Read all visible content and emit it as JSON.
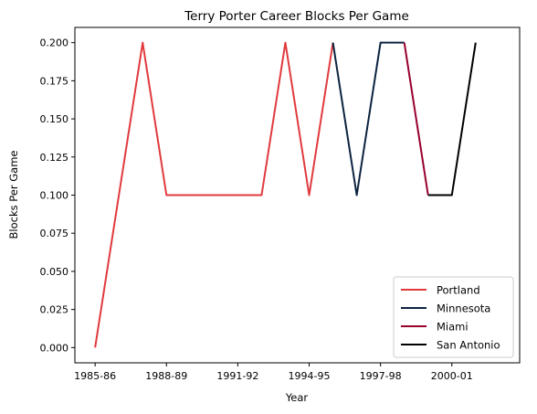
{
  "chart_data": {
    "type": "line",
    "title": "Terry Porter Career Blocks Per Game",
    "xlabel": "Year",
    "ylabel": "Blocks Per Game",
    "x_tick_labels": [
      "1985-86",
      "1988-89",
      "1991-92",
      "1994-95",
      "1997-98",
      "2000-01"
    ],
    "y_tick_labels": [
      "0.000",
      "0.025",
      "0.050",
      "0.075",
      "0.100",
      "0.125",
      "0.150",
      "0.175",
      "0.200"
    ],
    "xlim": [
      -0.85,
      17.85
    ],
    "ylim": [
      -0.01,
      0.21
    ],
    "y_ticks": [
      0,
      0.025,
      0.05,
      0.075,
      0.1,
      0.125,
      0.15,
      0.175,
      0.2
    ],
    "x_ticks": [
      0,
      3,
      6,
      9,
      12,
      15
    ],
    "grid": false,
    "legend_position": "bottom-right",
    "series": [
      {
        "name": "Portland",
        "color": "#e03a3e",
        "points": [
          [
            0,
            0.0
          ],
          [
            1,
            0.1
          ],
          [
            2,
            0.2
          ],
          [
            3,
            0.1
          ],
          [
            4,
            0.1
          ],
          [
            5,
            0.1
          ],
          [
            6,
            0.1
          ],
          [
            7,
            0.1
          ],
          [
            8,
            0.2
          ],
          [
            9,
            0.1
          ],
          [
            10,
            0.2
          ]
        ]
      },
      {
        "name": "Minnesota",
        "color": "#0c2340",
        "points": [
          [
            10,
            0.2
          ],
          [
            11,
            0.1
          ],
          [
            12,
            0.2
          ],
          [
            13,
            0.2
          ]
        ]
      },
      {
        "name": "Miami",
        "color": "#98002e",
        "points": [
          [
            13,
            0.2
          ],
          [
            14,
            0.1
          ]
        ]
      },
      {
        "name": "San Antonio",
        "color": "#000000",
        "points": [
          [
            14,
            0.1
          ],
          [
            15,
            0.1
          ],
          [
            16,
            0.2
          ]
        ]
      }
    ]
  }
}
